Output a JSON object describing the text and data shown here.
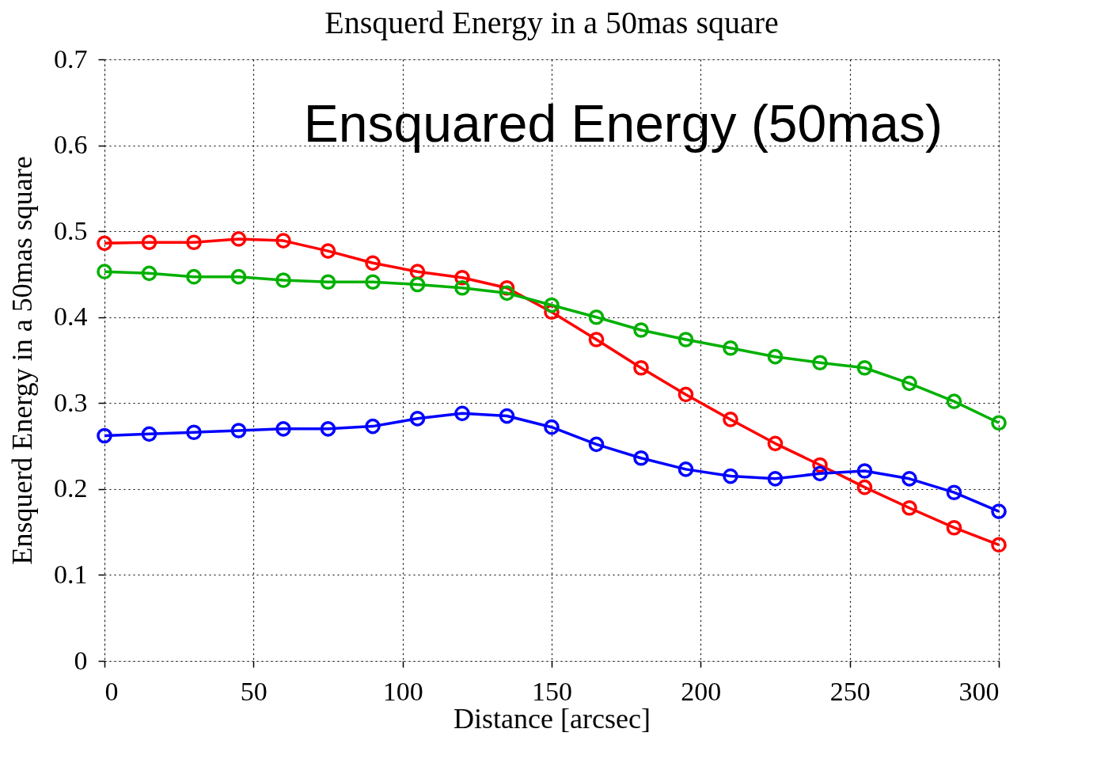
{
  "chart_data": {
    "type": "line",
    "title": "Ensquerd Energy in a 50mas square",
    "xlabel": "Distance [arcsec]",
    "ylabel": "Ensquerd Energy in a 50mas square",
    "annotations": [
      "Ensquared Energy (50mas)"
    ],
    "x": [
      0,
      15,
      30,
      45,
      60,
      75,
      90,
      105,
      120,
      135,
      150,
      165,
      180,
      195,
      210,
      225,
      240,
      255,
      270,
      285,
      300
    ],
    "series": [
      {
        "color": "#ff0000",
        "values": [
          0.486,
          0.487,
          0.487,
          0.491,
          0.489,
          0.477,
          0.463,
          0.453,
          0.446,
          0.434,
          0.406,
          0.374,
          0.341,
          0.31,
          0.281,
          0.253,
          0.228,
          0.202,
          0.178,
          0.155,
          0.135
        ]
      },
      {
        "color": "#00b000",
        "values": [
          0.453,
          0.451,
          0.447,
          0.447,
          0.443,
          0.441,
          0.441,
          0.438,
          0.434,
          0.428,
          0.414,
          0.4,
          0.385,
          0.374,
          0.364,
          0.354,
          0.347,
          0.341,
          0.323,
          0.302,
          0.277
        ]
      },
      {
        "color": "#0000ff",
        "values": [
          0.262,
          0.264,
          0.266,
          0.268,
          0.27,
          0.27,
          0.273,
          0.282,
          0.288,
          0.285,
          0.272,
          0.252,
          0.236,
          0.223,
          0.215,
          0.212,
          0.218,
          0.221,
          0.212,
          0.196,
          0.174
        ]
      }
    ],
    "xlim": [
      0,
      300
    ],
    "xticks": [
      0,
      50,
      100,
      150,
      200,
      250,
      300
    ],
    "ylim": [
      0,
      0.7
    ],
    "yticks": [
      0,
      0.1,
      0.2,
      0.3,
      0.4,
      0.5,
      0.6,
      0.7
    ],
    "grid": true,
    "marker": "circle",
    "line_style": "solid"
  }
}
